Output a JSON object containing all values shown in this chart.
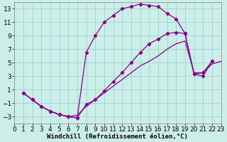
{
  "xlabel": "Windchill (Refroidissement éolien,°C)",
  "bg_color": "#cceee8",
  "line_color": "#880088",
  "grid_color": "#99cccc",
  "xlim": [
    0,
    23
  ],
  "ylim": [
    -4,
    14
  ],
  "xticks": [
    0,
    1,
    2,
    3,
    4,
    5,
    6,
    7,
    8,
    9,
    10,
    11,
    12,
    13,
    14,
    15,
    16,
    17,
    18,
    19,
    20,
    21,
    22,
    23
  ],
  "yticks": [
    -3,
    -1,
    1,
    3,
    5,
    7,
    9,
    11,
    13
  ],
  "line1_x": [
    1,
    2,
    3,
    4,
    5,
    6,
    7,
    8,
    9,
    10,
    11,
    12,
    13,
    14,
    15,
    16,
    17,
    18,
    19,
    20,
    21,
    22
  ],
  "line1_y": [
    0.5,
    -0.5,
    -1.5,
    -2.2,
    -2.7,
    -3.0,
    -3.2,
    6.5,
    9.0,
    11.0,
    12.0,
    13.0,
    13.3,
    13.7,
    13.5,
    13.3,
    12.3,
    11.5,
    9.3,
    3.3,
    3.0,
    5.2
  ],
  "line2_x": [
    1,
    2,
    3,
    4,
    5,
    6,
    7,
    8,
    9,
    10,
    11,
    12,
    13,
    14,
    15,
    16,
    17,
    18,
    19,
    20,
    21,
    22
  ],
  "line2_y": [
    0.5,
    -0.5,
    -1.5,
    -2.2,
    -2.7,
    -3.0,
    -3.2,
    -1.2,
    -0.5,
    0.8,
    2.2,
    3.5,
    5.0,
    6.5,
    7.8,
    8.5,
    9.3,
    9.5,
    9.3,
    3.3,
    3.5,
    5.2
  ],
  "line3_x": [
    1,
    2,
    3,
    4,
    5,
    6,
    7,
    8,
    9,
    10,
    11,
    12,
    13,
    14,
    15,
    16,
    17,
    18,
    19,
    20,
    21,
    22,
    23
  ],
  "line3_y": [
    0.5,
    -0.5,
    -1.5,
    -2.2,
    -2.7,
    -3.0,
    -2.8,
    -1.5,
    -0.5,
    0.5,
    1.5,
    2.5,
    3.5,
    4.5,
    5.2,
    6.0,
    7.0,
    7.8,
    8.2,
    3.5,
    3.5,
    4.8,
    5.2
  ],
  "xlabel_fontsize": 6.5,
  "tick_fontsize": 6.5,
  "marker_size": 2.2,
  "lw": 0.9
}
